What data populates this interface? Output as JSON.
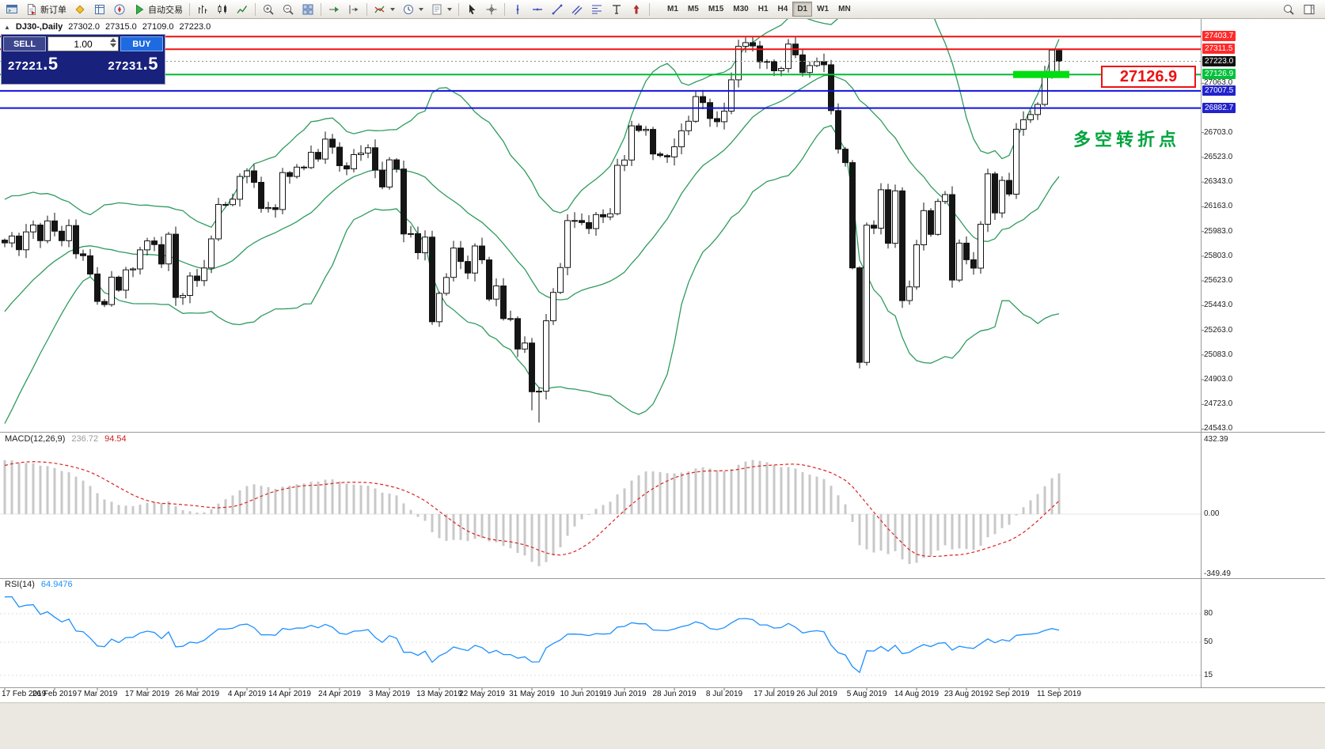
{
  "toolbar": {
    "buttons": [
      {
        "name": "terminal",
        "icon": "terminal"
      },
      {
        "name": "new-order",
        "icon": "new-order",
        "label": "新订单"
      },
      {
        "name": "metaeditor",
        "icon": "metaeditor"
      },
      {
        "name": "market-watch",
        "icon": "market-watch"
      },
      {
        "name": "navigator",
        "icon": "navigator"
      },
      {
        "name": "autotrading",
        "icon": "play",
        "label": "自动交易"
      },
      {
        "name": "sep"
      },
      {
        "name": "bar-chart",
        "icon": "bar-chart"
      },
      {
        "name": "candlestick-chart",
        "icon": "candles"
      },
      {
        "name": "line-chart",
        "icon": "line-chart"
      },
      {
        "name": "sep"
      },
      {
        "name": "zoom-in",
        "icon": "zoom-in"
      },
      {
        "name": "zoom-out",
        "icon": "zoom-out"
      },
      {
        "name": "tile-windows",
        "icon": "tile"
      },
      {
        "name": "sep"
      },
      {
        "name": "auto-scroll",
        "icon": "auto-scroll"
      },
      {
        "name": "chart-shift",
        "icon": "chart-shift"
      },
      {
        "name": "sep"
      },
      {
        "name": "indicators",
        "icon": "indicators",
        "caret": true
      },
      {
        "name": "periods",
        "icon": "clock",
        "caret": true
      },
      {
        "name": "templates",
        "icon": "template",
        "caret": true
      },
      {
        "name": "sep"
      },
      {
        "name": "cursor",
        "icon": "cursor"
      },
      {
        "name": "crosshair",
        "icon": "crosshair"
      },
      {
        "name": "sep"
      },
      {
        "name": "vertical-line",
        "icon": "vline"
      },
      {
        "name": "horizontal-line",
        "icon": "hline"
      },
      {
        "name": "trendline",
        "icon": "trendline"
      },
      {
        "name": "equidistant-channel",
        "icon": "channel"
      },
      {
        "name": "fibonacci",
        "icon": "fibo"
      },
      {
        "name": "text",
        "icon": "text-tool"
      },
      {
        "name": "arrows",
        "icon": "arrow-tool"
      },
      {
        "name": "sep"
      }
    ],
    "timeframes": [
      "M1",
      "M5",
      "M15",
      "M30",
      "H1",
      "H4",
      "D1",
      "W1",
      "MN"
    ],
    "active_timeframe": "D1",
    "right_icons": [
      {
        "name": "search",
        "icon": "search"
      },
      {
        "name": "panels",
        "icon": "panels"
      }
    ]
  },
  "symbol_header": {
    "collapse_icon": "▲",
    "symbol": "DJ30-,Daily",
    "open": "27302.0",
    "high": "27315.0",
    "low": "27109.0",
    "close": "27223.0"
  },
  "trade_panel": {
    "sell_label": "SELL",
    "buy_label": "BUY",
    "volume": "1.00",
    "sell_price": "27221.5",
    "buy_price": "27231.5"
  },
  "annotations": {
    "price_callout": "27126.9",
    "note_text": "多空转折点"
  },
  "chart_data": {
    "type": "candlestick",
    "symbol": "DJ30",
    "period": "Daily",
    "candle_up_fill": "#ffffff",
    "candle_down_fill": "#151515",
    "candle_border": "#151515",
    "x_labels": [
      "17 Feb 2019",
      "26 Feb 2019",
      "7 Mar 2019",
      "17 Mar 2019",
      "26 Mar 2019",
      "4 Apr 2019",
      "14 Apr 2019",
      "24 Apr 2019",
      "3 May 2019",
      "13 May 2019",
      "22 May 2019",
      "31 May 2019",
      "10 Jun 2019",
      "19 Jun 2019",
      "28 Jun 2019",
      "8 Jul 2019",
      "17 Jul 2019",
      "26 Jul 2019",
      "5 Aug 2019",
      "14 Aug 2019",
      "23 Aug 2019",
      "2 Sep 2019",
      "11 Sep 2019"
    ],
    "warmup_closes": [
      24600,
      24680,
      24760,
      24840,
      24920,
      25000,
      25080,
      25160,
      25240,
      25320,
      25400,
      25480,
      25560,
      25640,
      25720,
      25780,
      25830,
      25870,
      25900,
      25920
    ],
    "closes": [
      25900,
      25950,
      25850,
      25980,
      26030,
      25916,
      26060,
      25985,
      25916,
      26026,
      25820,
      25806,
      25673,
      25473,
      25450,
      25650,
      25555,
      25703,
      25710,
      25849,
      25914,
      25887,
      25746,
      25963,
      25502,
      25517,
      25658,
      25625,
      25717,
      25929,
      26180,
      26179,
      26218,
      26384,
      26425,
      26341,
      26150,
      26157,
      26143,
      26412,
      26384,
      26452,
      26449,
      26560,
      26511,
      26656,
      26597,
      26462,
      26439,
      26543,
      26554,
      26593,
      26430,
      26307,
      26505,
      26438,
      25965,
      25967,
      25828,
      25942,
      25325,
      25532,
      25648,
      25862,
      25764,
      25680,
      25877,
      25776,
      25490,
      25586,
      25348,
      25348,
      25126,
      25170,
      24815,
      24819,
      25332,
      25539,
      25720,
      26062,
      26063,
      26048,
      26004,
      26106,
      26089,
      26112,
      26465,
      26504,
      26753,
      26719,
      26727,
      26548,
      26536,
      26526,
      26600,
      26717,
      26786,
      26966,
      26922,
      26806,
      26783,
      26860,
      27088,
      27332,
      27359,
      27335,
      27220,
      27222,
      27154,
      27171,
      27349,
      27270,
      27141,
      27192,
      27221,
      27198,
      26864,
      26583,
      26485,
      25718,
      25029,
      26029,
      26007,
      26287,
      25897,
      26279,
      25479,
      25579,
      25886,
      26135,
      25962,
      26202,
      26252,
      25629,
      25898,
      25777,
      25716,
      26036,
      26403,
      26118,
      26355,
      26255,
      26728,
      26797,
      26835,
      26909,
      27137,
      27305,
      27223
    ],
    "last_ohlc": [
      27302,
      27315,
      27109,
      27223
    ],
    "spike_highs": {
      "103": 27380,
      "104": 27398,
      "110": 27385,
      "147": 27311
    },
    "spike_lows": {
      "74": 24680,
      "75": 24590,
      "120": 24985
    },
    "levels": [
      {
        "price": 27403.7,
        "color": "#ee1111",
        "width": 2,
        "style": "solid"
      },
      {
        "price": 27311.5,
        "color": "#ee1111",
        "width": 2,
        "style": "solid"
      },
      {
        "price": 27223.0,
        "color": "#909090",
        "width": 1,
        "style": "dotted"
      },
      {
        "price": 27126.9,
        "color": "#00bb33",
        "width": 2,
        "style": "solid"
      },
      {
        "price": 27007.5,
        "color": "#1111dd",
        "width": 2,
        "style": "solid"
      },
      {
        "price": 26882.7,
        "color": "#1111dd",
        "width": 2,
        "style": "solid"
      }
    ],
    "highlight_segment": {
      "from_bar": 142,
      "to_bar": 149,
      "price": 27126.9,
      "color": "#00dd11",
      "thickness": 9
    },
    "axis_labels": [
      {
        "text": "27403.7",
        "price": 27403.7,
        "bg": "#ff2a2a",
        "fg": "#ffffff"
      },
      {
        "text": "27311.5",
        "price": 27311.5,
        "bg": "#ff2a2a",
        "fg": "#ffffff"
      },
      {
        "text": "27223.0",
        "price": 27223.0,
        "bg": "#101010",
        "fg": "#ffffff"
      },
      {
        "text": "27126.9",
        "price": 27126.9,
        "bg": "#00c23a",
        "fg": "#ffffff"
      },
      {
        "text": "27007.5",
        "price": 27007.5,
        "bg": "#2222cc",
        "fg": "#ffffff"
      },
      {
        "text": "26882.7",
        "price": 26882.7,
        "bg": "#2222cc",
        "fg": "#ffffff"
      }
    ],
    "price_ticks": [
      27063,
      26703,
      26523,
      26343,
      26163,
      25983,
      25803,
      25623,
      25443,
      25263,
      25083,
      24903,
      24723,
      24543
    ],
    "indicators": {
      "bollinger": {
        "period": 20,
        "deviation": 2,
        "color": "#2e9b5e"
      },
      "macd": {
        "label": "MACD(12,26,9)",
        "fast": 12,
        "slow": 26,
        "signal": 9,
        "main_value": "236.72",
        "signal_value": "94.54",
        "scale_labels": [
          "432.39",
          "0.00",
          "-349.49"
        ],
        "scale_max": 432.39,
        "scale_min": -349.49,
        "histogram_color": "#c8c8c8",
        "signal_color": "#dd2222"
      },
      "rsi": {
        "label": "RSI(14)",
        "period": 14,
        "value": "64.9476",
        "scale_labels": [
          "80",
          "50",
          "15"
        ],
        "levels": [
          80,
          50,
          15
        ],
        "color": "#1e90ff"
      }
    }
  }
}
